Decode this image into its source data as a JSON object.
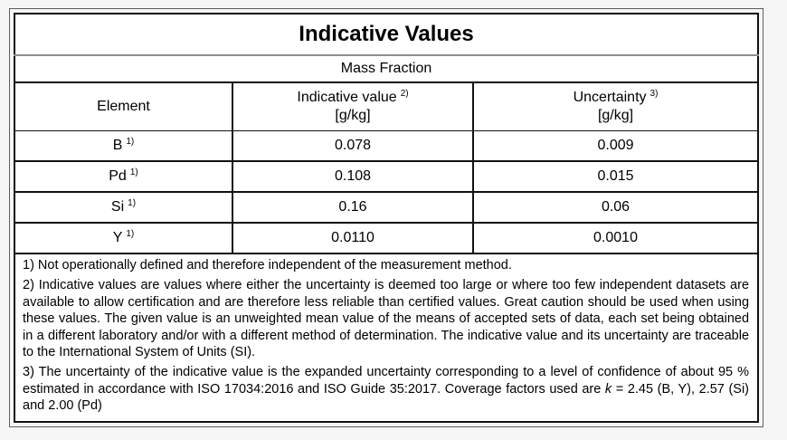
{
  "colors": {
    "page_background": "#f6f6f6",
    "table_background": "#ffffff",
    "border_dark": "#111111",
    "title_separator_gray": "#8e8e8e",
    "text": "#000000"
  },
  "table": {
    "title": "Indicative Values",
    "subtitle": "Mass Fraction",
    "header": {
      "element": "Element",
      "indicative_label": "Indicative value",
      "indicative_sup": "2)",
      "indicative_unit": "[g/kg]",
      "uncertainty_label": "Uncertainty",
      "uncertainty_sup": "3)",
      "uncertainty_unit": "[g/kg]"
    },
    "rows": [
      {
        "element": "B",
        "sup": "1)",
        "indicative_value": "0.078",
        "uncertainty": "0.009"
      },
      {
        "element": "Pd",
        "sup": "1)",
        "indicative_value": "0.108",
        "uncertainty": "0.015"
      },
      {
        "element": "Si",
        "sup": "1)",
        "indicative_value": "0.16",
        "uncertainty": "0.06"
      },
      {
        "element": "Y",
        "sup": "1)",
        "indicative_value": "0.0110",
        "uncertainty": "0.0010"
      }
    ],
    "footnotes": {
      "note1": "1) Not operationally defined and therefore independent of the measurement method.",
      "note2": "2) Indicative values are values where either the uncertainty is deemed too large or where too few independent datasets are available to allow certification and are therefore less reliable than certified values. Great caution should be used when using these values. The given value is an unweighted mean value of the means of accepted sets of data, each set being obtained in a different laboratory and/or with a different method of determination. The indicative value and its uncertainty are traceable to the International System of Units (SI).",
      "note3_before": "3) The uncertainty of the indicative value is the expanded uncertainty corresponding to a level of confidence of about 95 % estimated in accordance with ISO 17034:2016 and ISO Guide 35:2017. Coverage factors used are ",
      "note3_k": "k",
      "note3_after": " = 2.45 (B, Y), 2.57 (Si) and 2.00 (Pd)"
    }
  }
}
